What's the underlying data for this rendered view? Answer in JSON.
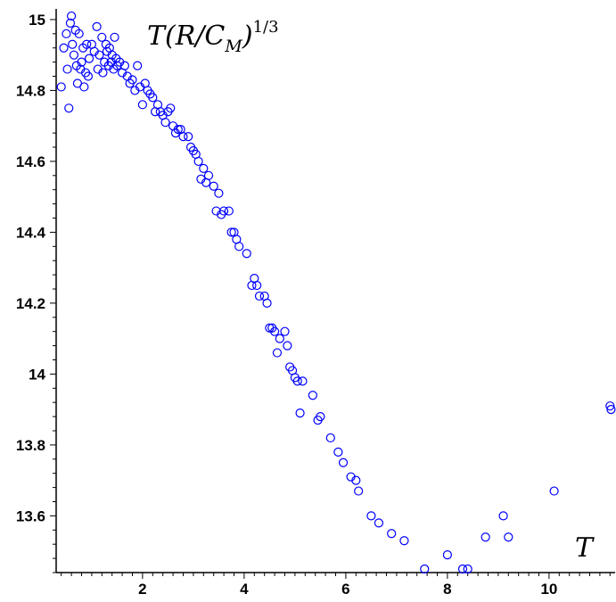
{
  "chart_data": {
    "type": "scatter",
    "title": "",
    "xlabel": "T",
    "ylabel": "T(R/C_M)^1/3",
    "ylabel_parts": {
      "main": "T(R/C",
      "sub": "M",
      "close": ")",
      "sup": "1/3"
    },
    "xlim": [
      0.3,
      11.3
    ],
    "ylim": [
      13.44,
      15.03
    ],
    "x_ticks": [
      2,
      4,
      6,
      8,
      10
    ],
    "x_tick_labels": [
      "2",
      "4",
      "6",
      "8",
      "10"
    ],
    "y_ticks": [
      13.6,
      13.8,
      14,
      14.2,
      14.4,
      14.6,
      14.8,
      15
    ],
    "y_tick_labels": [
      "13.6",
      "13.8",
      "14",
      "14.2",
      "14.4",
      "14.6",
      "14.8",
      "15"
    ],
    "grid": false,
    "legend": "none",
    "marker_color": "#0000ff",
    "series": [
      {
        "x": [
          0.4,
          0.45,
          0.5,
          0.52,
          0.55,
          0.58,
          0.6,
          0.62,
          0.65,
          0.68,
          0.7,
          0.72,
          0.75,
          0.78,
          0.8,
          0.83,
          0.85,
          0.88,
          0.9,
          0.93,
          0.95,
          1.0,
          1.05,
          1.1,
          1.12,
          1.15,
          1.2,
          1.22,
          1.25,
          1.28,
          1.3,
          1.33,
          1.35,
          1.38,
          1.4,
          1.43,
          1.45,
          1.48,
          1.5,
          1.55,
          1.6,
          1.65,
          1.7,
          1.75,
          1.8,
          1.85,
          1.9,
          1.95,
          2.0,
          2.05,
          2.1,
          2.15,
          2.2,
          2.25,
          2.3,
          2.35,
          2.4,
          2.45,
          2.5,
          2.55,
          2.6,
          2.65,
          2.7,
          2.75,
          2.8,
          2.9,
          2.95,
          3.0,
          3.05,
          3.1,
          3.15,
          3.2,
          3.25,
          3.3,
          3.4,
          3.45,
          3.5,
          3.55,
          3.6,
          3.7,
          3.75,
          3.8,
          3.85,
          3.9,
          4.05,
          4.15,
          4.2,
          4.25,
          4.3,
          4.4,
          4.45,
          4.5,
          4.55,
          4.6,
          4.65,
          4.7,
          4.8,
          4.85,
          4.9,
          4.95,
          5.0,
          5.05,
          5.1,
          5.15,
          5.35,
          5.45,
          5.5,
          5.7,
          5.85,
          5.95,
          6.1,
          6.2,
          6.25,
          6.5,
          6.65,
          6.9,
          7.15,
          7.55,
          8.0,
          8.3,
          8.4,
          8.75,
          9.1,
          9.2,
          10.1,
          11.2,
          11.22
        ],
        "y": [
          14.81,
          14.92,
          14.96,
          14.86,
          14.75,
          14.99,
          15.01,
          14.93,
          14.9,
          14.97,
          14.87,
          14.82,
          14.96,
          14.86,
          14.88,
          14.92,
          14.81,
          14.85,
          14.93,
          14.84,
          14.89,
          14.93,
          14.91,
          14.98,
          14.86,
          14.9,
          14.95,
          14.85,
          14.88,
          14.93,
          14.91,
          14.87,
          14.92,
          14.88,
          14.9,
          14.86,
          14.95,
          14.89,
          14.87,
          14.88,
          14.85,
          14.87,
          14.84,
          14.82,
          14.83,
          14.8,
          14.87,
          14.81,
          14.76,
          14.82,
          14.8,
          14.79,
          14.78,
          14.74,
          14.76,
          14.74,
          14.73,
          14.71,
          14.74,
          14.75,
          14.7,
          14.68,
          14.69,
          14.69,
          14.67,
          14.67,
          14.64,
          14.63,
          14.62,
          14.6,
          14.55,
          14.58,
          14.54,
          14.56,
          14.53,
          14.46,
          14.51,
          14.45,
          14.46,
          14.46,
          14.4,
          14.4,
          14.38,
          14.36,
          14.34,
          14.25,
          14.27,
          14.25,
          14.22,
          14.22,
          14.2,
          14.13,
          14.13,
          14.12,
          14.06,
          14.1,
          14.12,
          14.08,
          14.02,
          14.01,
          13.99,
          13.98,
          13.89,
          13.98,
          13.94,
          13.87,
          13.88,
          13.82,
          13.78,
          13.75,
          13.71,
          13.7,
          13.67,
          13.6,
          13.58,
          13.55,
          13.53,
          13.45,
          13.49,
          13.45,
          13.45,
          13.54,
          13.6,
          13.54,
          13.67,
          13.91,
          13.9
        ]
      }
    ]
  }
}
